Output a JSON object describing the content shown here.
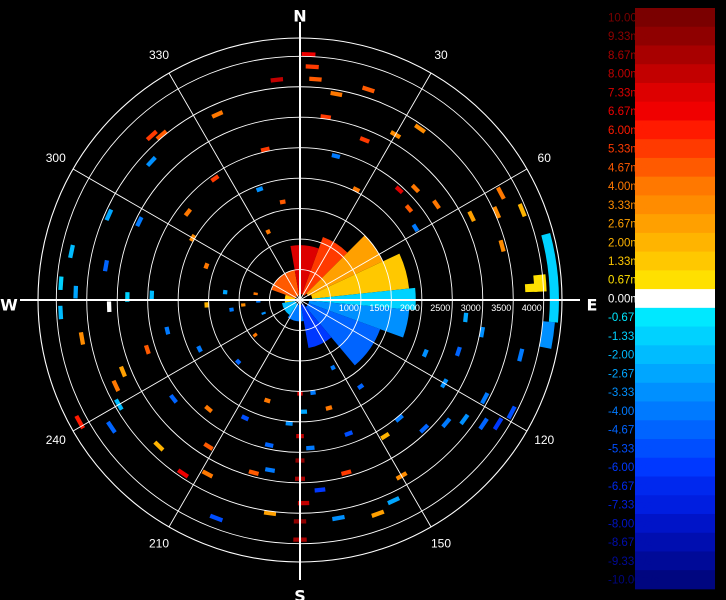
{
  "chart_data": {
    "type": "polar-radar",
    "cardinals": [
      "N",
      "E",
      "S",
      "W"
    ],
    "angle_labels": [
      30,
      60,
      120,
      150,
      210,
      240,
      300,
      330
    ],
    "angle_label_texts": [
      "30",
      "60",
      "120",
      "150",
      "210",
      "240",
      "300",
      "330"
    ],
    "range_rings_m": [
      500,
      1000,
      1500,
      2000,
      2500,
      3000,
      3500,
      4000
    ],
    "range_ring_labels": [
      "1000",
      "1500",
      "2000",
      "2500",
      "3000",
      "3500",
      "4000"
    ],
    "max_range_m": 4300,
    "scale": {
      "unit": "m/s",
      "min": -10,
      "max": 10,
      "labels": [
        "10.00m/s",
        "9.33m/s",
        "8.67m/s",
        "8.00m/s",
        "7.33m/s",
        "6.67m/s",
        "6.00m/s",
        "5.33m/s",
        "4.67m/s",
        "4.00m/s",
        "3.33m/s",
        "2.67m/s",
        "2.00m/s",
        "1.33m/s",
        "0.67m/s",
        "0.00m/s",
        "-0.67m/s",
        "-1.33m/s",
        "-2.00m/s",
        "-2.67m/s",
        "-3.33m/s",
        "-4.00m/s",
        "-4.67m/s",
        "-5.33m/s",
        "-6.00m/s",
        "-6.67m/s",
        "-7.33m/s",
        "-8.00m/s",
        "-8.67m/s",
        "-9.33m/s",
        "-10.00m/s"
      ],
      "colors": [
        "#7a0000",
        "#8f0000",
        "#a80000",
        "#c20000",
        "#dd0000",
        "#f00000",
        "#ff1a00",
        "#ff3a00",
        "#ff5a00",
        "#ff7800",
        "#ff8c00",
        "#ffa000",
        "#ffb400",
        "#ffc800",
        "#ffe000",
        "#ffffff",
        "#00e8ff",
        "#00d2ff",
        "#00bcff",
        "#00a6ff",
        "#0090ff",
        "#007aff",
        "#0064ff",
        "#004eff",
        "#0038ff",
        "#0028ee",
        "#001ee0",
        "#0014c8",
        "#000eb0",
        "#000a98",
        "#000680"
      ]
    },
    "echo_regions": [
      {
        "az": [
          -70,
          -10
        ],
        "r": [
          80,
          500
        ],
        "v": 5.0
      },
      {
        "az": [
          -10,
          20
        ],
        "r": [
          100,
          900
        ],
        "v": 7.5
      },
      {
        "az": [
          20,
          45
        ],
        "r": [
          100,
          1100
        ],
        "v": 5.5
      },
      {
        "az": [
          45,
          65
        ],
        "r": [
          150,
          1500
        ],
        "v": 3.0
      },
      {
        "az": [
          65,
          84
        ],
        "r": [
          200,
          1800
        ],
        "v": 1.5
      },
      {
        "az": [
          84,
          95
        ],
        "r": [
          200,
          1900
        ],
        "v": -1.5
      },
      {
        "az": [
          95,
          110
        ],
        "r": [
          150,
          1800
        ],
        "v": -3.0
      },
      {
        "az": [
          110,
          140
        ],
        "r": [
          150,
          1400
        ],
        "v": -4.5
      },
      {
        "az": [
          140,
          170
        ],
        "r": [
          80,
          800
        ],
        "v": -6.0
      },
      {
        "az": [
          170,
          215
        ],
        "r": [
          80,
          350
        ],
        "v": -4.0
      },
      {
        "az": [
          215,
          260
        ],
        "r": [
          80,
          300
        ],
        "v": -2.0
      },
      {
        "az": [
          260,
          290
        ],
        "r": [
          80,
          250
        ],
        "v": 1.5
      },
      {
        "az": [
          75,
          95
        ],
        "r": [
          4100,
          4250
        ],
        "v": -1.5
      },
      {
        "az": [
          95,
          101
        ],
        "r": [
          4000,
          4200
        ],
        "v": -3.0
      },
      {
        "az": [
          84,
          88
        ],
        "r": [
          3850,
          4050
        ],
        "v": 0.7
      },
      {
        "az": [
          86,
          88
        ],
        "r": [
          3700,
          3900
        ],
        "v": 1.0
      }
    ],
    "scatter_echoes": [
      {
        "az": 2,
        "r": 4000,
        "v": 7.0
      },
      {
        "az": 3,
        "r": 3800,
        "v": 5.3
      },
      {
        "az": 4,
        "r": 3600,
        "v": 4.7
      },
      {
        "az": 10,
        "r": 3400,
        "v": 4.0
      },
      {
        "az": -6,
        "r": 3600,
        "v": 8.0
      },
      {
        "az": -13,
        "r": 2500,
        "v": 5.3
      },
      {
        "az": -24,
        "r": 3300,
        "v": 4.0
      },
      {
        "az": -40,
        "r": 3500,
        "v": 4.7
      },
      {
        "az": -42,
        "r": 3600,
        "v": 5.3
      },
      {
        "az": -47,
        "r": 3300,
        "v": -3.3
      },
      {
        "az": -64,
        "r": 2900,
        "v": -4.0
      },
      {
        "az": -66,
        "r": 3400,
        "v": -2.7
      },
      {
        "az": -78,
        "r": 3800,
        "v": -2.0
      },
      {
        "az": -86,
        "r": 3900,
        "v": -1.3
      },
      {
        "az": -88,
        "r": 3650,
        "v": -2.7
      },
      {
        "az": -93,
        "r": 3900,
        "v": -2.0
      },
      {
        "az": -80,
        "r": 3200,
        "v": -4.7
      },
      {
        "az": -100,
        "r": 3600,
        "v": 3.3
      },
      {
        "az": -115,
        "r": 3300,
        "v": 4.0
      },
      {
        "az": -112,
        "r": 3100,
        "v": 2.7
      },
      {
        "az": -120,
        "r": 3400,
        "v": -2.0
      },
      {
        "az": -119,
        "r": 4100,
        "v": 6.0
      },
      {
        "az": -124,
        "r": 3700,
        "v": -4.7
      },
      {
        "az": -136,
        "r": 3300,
        "v": 2.0
      },
      {
        "az": -146,
        "r": 3400,
        "v": 6.7
      },
      {
        "az": -152,
        "r": 3200,
        "v": 4.0
      },
      {
        "az": -159,
        "r": 3800,
        "v": -5.3
      },
      {
        "az": -165,
        "r": 2900,
        "v": 4.7
      },
      {
        "az": -170,
        "r": 2800,
        "v": -4.0
      },
      {
        "az": -172,
        "r": 3500,
        "v": 2.7
      },
      {
        "az": 180,
        "r": 3600,
        "v": 9.3
      },
      {
        "az": 180,
        "r": 3900,
        "v": 8.7
      },
      {
        "az": 179,
        "r": 3300,
        "v": 8.0
      },
      {
        "az": 180,
        "r": 2900,
        "v": 8.7
      },
      {
        "az": 180,
        "r": 2600,
        "v": 9.3
      },
      {
        "az": 180,
        "r": 2200,
        "v": 8.0
      },
      {
        "az": 180,
        "r": 1500,
        "v": 7.3
      },
      {
        "az": 178,
        "r": 1800,
        "v": -2.7
      },
      {
        "az": 174,
        "r": 3100,
        "v": -6.0
      },
      {
        "az": 176,
        "r": 2400,
        "v": -4.0
      },
      {
        "az": 170,
        "r": 3600,
        "v": -3.3
      },
      {
        "az": 165,
        "r": 2900,
        "v": 5.3
      },
      {
        "az": 160,
        "r": 3700,
        "v": 2.7
      },
      {
        "az": 155,
        "r": 3600,
        "v": -2.7
      },
      {
        "az": 150,
        "r": 3300,
        "v": 3.3
      },
      {
        "az": 148,
        "r": 2600,
        "v": 2.0
      },
      {
        "az": 140,
        "r": 2500,
        "v": -4.0
      },
      {
        "az": 136,
        "r": 2900,
        "v": -4.7
      },
      {
        "az": 130,
        "r": 3100,
        "v": -4.0
      },
      {
        "az": 126,
        "r": 3300,
        "v": -3.3
      },
      {
        "az": 124,
        "r": 3600,
        "v": -4.7
      },
      {
        "az": 122,
        "r": 3800,
        "v": -6.0
      },
      {
        "az": 118,
        "r": 3900,
        "v": -5.3
      },
      {
        "az": 118,
        "r": 3400,
        "v": -4.0
      },
      {
        "az": 120,
        "r": 2700,
        "v": -3.3
      },
      {
        "az": 113,
        "r": 2200,
        "v": -3.3
      },
      {
        "az": 108,
        "r": 2700,
        "v": -4.7
      },
      {
        "az": 104,
        "r": 3700,
        "v": -4.0
      },
      {
        "az": 100,
        "r": 3000,
        "v": -3.3
      },
      {
        "az": 96,
        "r": 2700,
        "v": -2.7
      },
      {
        "az": 75,
        "r": 3400,
        "v": 3.3
      },
      {
        "az": 68,
        "r": 3900,
        "v": 2.0
      },
      {
        "az": 66,
        "r": 3500,
        "v": 3.3
      },
      {
        "az": 64,
        "r": 3100,
        "v": 2.7
      },
      {
        "az": 62,
        "r": 3700,
        "v": 4.0
      },
      {
        "az": 58,
        "r": 2200,
        "v": -4.0
      },
      {
        "az": 55,
        "r": 2700,
        "v": 4.0
      },
      {
        "az": 50,
        "r": 2300,
        "v": 4.7
      },
      {
        "az": 46,
        "r": 2600,
        "v": 4.0
      },
      {
        "az": 42,
        "r": 2400,
        "v": 7.3
      },
      {
        "az": 35,
        "r": 3400,
        "v": 3.3
      },
      {
        "az": 30,
        "r": 3100,
        "v": 3.3
      },
      {
        "az": 27,
        "r": 2000,
        "v": 4.0
      },
      {
        "az": 22,
        "r": 2800,
        "v": 5.3
      },
      {
        "az": 18,
        "r": 3600,
        "v": 4.7
      },
      {
        "az": 14,
        "r": 2400,
        "v": -4.0
      },
      {
        "az": 8,
        "r": 3000,
        "v": 5.3
      },
      {
        "az": -10,
        "r": 1600,
        "v": 4.7
      },
      {
        "az": -25,
        "r": 1200,
        "v": 4.0
      },
      {
        "az": -20,
        "r": 1900,
        "v": -3.3
      },
      {
        "az": -35,
        "r": 2400,
        "v": 5.3
      },
      {
        "az": -52,
        "r": 2300,
        "v": 4.0
      },
      {
        "az": -60,
        "r": 2000,
        "v": 3.3
      },
      {
        "az": -70,
        "r": 1600,
        "v": 4.0
      },
      {
        "az": -84,
        "r": 1200,
        "v": -2.7
      },
      {
        "az": -93,
        "r": 1500,
        "v": 2.0
      },
      {
        "az": -98,
        "r": 1100,
        "v": -4.0
      },
      {
        "az": -103,
        "r": 2200,
        "v": -4.0
      },
      {
        "az": -108,
        "r": 2600,
        "v": 4.7
      },
      {
        "az": -116,
        "r": 1800,
        "v": -4.0
      },
      {
        "az": -128,
        "r": 2600,
        "v": -4.7
      },
      {
        "az": -140,
        "r": 2300,
        "v": 4.0
      },
      {
        "az": -148,
        "r": 2800,
        "v": 4.7
      },
      {
        "az": -155,
        "r": 2100,
        "v": -5.3
      },
      {
        "az": -162,
        "r": 1700,
        "v": 4.0
      },
      {
        "az": -168,
        "r": 2400,
        "v": -4.7
      },
      {
        "az": -175,
        "r": 2000,
        "v": -3.3
      },
      {
        "az": 172,
        "r": 1500,
        "v": -4.0
      },
      {
        "az": 165,
        "r": 1800,
        "v": 4.0
      },
      {
        "az": 160,
        "r": 2300,
        "v": -5.3
      },
      {
        "az": 154,
        "r": 1200,
        "v": -4.0
      },
      {
        "az": 145,
        "r": 1700,
        "v": -4.7
      },
      {
        "az": -92,
        "r": 3100,
        "v": 0.0
      },
      {
        "az": -89,
        "r": 2800,
        "v": -1.3
      },
      {
        "az": -88,
        "r": 2400,
        "v": -2.0
      },
      {
        "az": -135,
        "r": 1400,
        "v": -4.7
      },
      {
        "az": -128,
        "r": 900,
        "v": 4.0
      },
      {
        "az": -110,
        "r": 600,
        "v": -3.3
      },
      {
        "az": -95,
        "r": 900,
        "v": 3.3
      },
      {
        "az": -82,
        "r": 700,
        "v": 4.0
      },
      {
        "az": -92,
        "r": 650,
        "v": -4.0
      }
    ]
  }
}
